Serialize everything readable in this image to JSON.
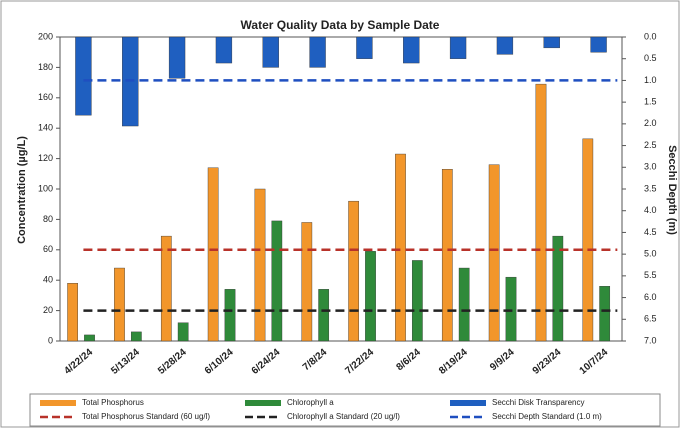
{
  "chart_data": {
    "type": "bar",
    "title": "Water Quality Data by Sample Date",
    "y_label": "Concentration (µg/L)",
    "y2_label": "Secchi Depth (m)",
    "categories": [
      "4/22/24",
      "5/13/24",
      "5/28/24",
      "6/10/24",
      "6/24/24",
      "7/8/24",
      "7/22/24",
      "8/6/24",
      "8/19/24",
      "9/9/24",
      "9/23/24",
      "10/7/24"
    ],
    "series": [
      {
        "name": "Total Phosphorus",
        "color": "#f2962b",
        "values": [
          38,
          48,
          69,
          114,
          100,
          78,
          92,
          123,
          113,
          116,
          169,
          133
        ]
      },
      {
        "name": "Chlorophyll a",
        "color": "#2f8a3a",
        "values": [
          4,
          6,
          12,
          34,
          79,
          34,
          59,
          53,
          48,
          42,
          69,
          36
        ]
      },
      {
        "name": "Secchi Disk Transparency",
        "color": "#1f5fc0",
        "axis": "y2",
        "values": [
          1.8,
          2.05,
          0.95,
          0.6,
          0.7,
          0.7,
          0.5,
          0.6,
          0.5,
          0.4,
          0.25,
          0.35
        ]
      }
    ],
    "reference_lines": [
      {
        "name": "Total Phosphorus Standard (60 ug/l)",
        "color": "#b8322a",
        "value": 60
      },
      {
        "name": "Chlorophyll a Standard (20 ug/l)",
        "color": "#222222",
        "value": 20
      },
      {
        "name": "Secchi Depth Standard (1.0 m)",
        "color": "#1f4fc0",
        "value": 1,
        "axis": "y2"
      }
    ],
    "ylim": [
      0,
      200
    ],
    "yticks": [
      0,
      20,
      40,
      60,
      80,
      100,
      120,
      140,
      160,
      180,
      200
    ],
    "y2lim": [
      7,
      0
    ],
    "y2ticks": [
      {
        "value": 0,
        "label": "0.0"
      },
      0.5,
      {
        "value": 1,
        "label": "1.0"
      },
      1.5,
      {
        "value": 2,
        "label": "2.0"
      },
      2.5,
      {
        "value": 3,
        "label": "3.0"
      },
      3.5,
      {
        "value": 4,
        "label": "4.0"
      },
      4.5,
      {
        "value": 5,
        "label": "5.0"
      },
      5.5,
      {
        "value": 6,
        "label": "6.0"
      },
      6.5,
      {
        "value": 7,
        "label": "7.0"
      }
    ]
  }
}
